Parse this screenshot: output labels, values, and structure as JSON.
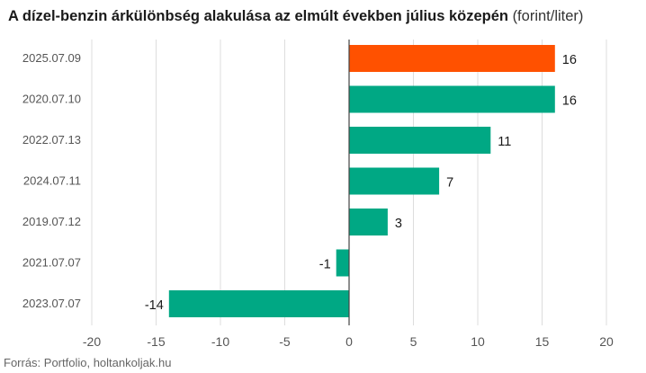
{
  "chart_data": {
    "type": "bar",
    "orientation": "horizontal",
    "title": "A dízel-benzin árkülönbség alakulása az elmúlt években július közepén",
    "title_unit": "(forint/liter)",
    "categories": [
      "2025.07.09",
      "2020.07.10",
      "2022.07.13",
      "2024.07.11",
      "2019.07.12",
      "2021.07.07",
      "2023.07.07"
    ],
    "values": [
      16,
      16,
      11,
      7,
      3,
      -1,
      -14
    ],
    "value_labels": [
      "16",
      "16",
      "11",
      "7",
      "3",
      "-1",
      "-14"
    ],
    "xlim": [
      -20,
      20
    ],
    "xticks": [
      -20,
      -15,
      -10,
      -5,
      0,
      5,
      10,
      15,
      20
    ],
    "xtick_labels": [
      "-20",
      "-15",
      "-10",
      "-5",
      "0",
      "5",
      "10",
      "15",
      "20"
    ],
    "grid": true,
    "colors": {
      "highlight": "#ff5100",
      "default": "#00a884",
      "grid": "#dddddd",
      "zero_line": "#444444"
    },
    "highlight_index": 0
  },
  "source": "Forrás: Portfolio, holtankoljak.hu"
}
